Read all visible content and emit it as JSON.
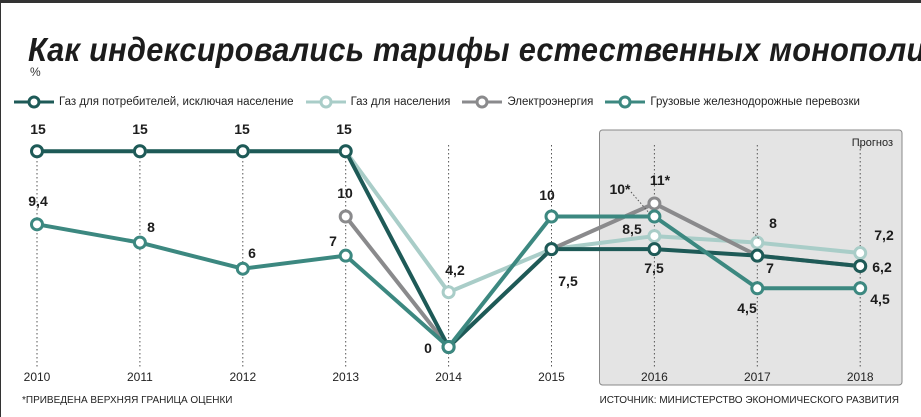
{
  "title": "Как индексировались тарифы естественных монополий",
  "unit": "%",
  "footnote": "*ПРИВЕДЕНА ВЕРХНЯЯ ГРАНИЦА ОЦЕНКИ",
  "source": "ИСТОЧНИК: МИНИСТЕРСТВО ЭКОНОМИЧЕСКОГО РАЗВИТИЯ",
  "colors": {
    "gas_industry": "#1e5a57",
    "gas_population": "#a9cdc8",
    "electricity": "#8a8a8c",
    "rail": "#3c8880",
    "forecast_bg": "#e4e4e4"
  },
  "chart_data": {
    "type": "line",
    "x": [
      "2010",
      "2011",
      "2012",
      "2013",
      "2014",
      "2015",
      "2016",
      "2017",
      "2018"
    ],
    "forecast_label": "Прогноз",
    "forecast_start": "2015",
    "series": [
      {
        "key": "gas_industry",
        "name": "Газ для потребителей, исключая население",
        "values": [
          15,
          15,
          15,
          15,
          0,
          7.5,
          7.5,
          7,
          6.2
        ]
      },
      {
        "key": "gas_population",
        "name": "Газ для населения",
        "values": [
          null,
          15,
          15,
          15,
          4.2,
          7.5,
          8.5,
          8,
          7.2
        ]
      },
      {
        "key": "electricity",
        "name": "Электроэнергия",
        "values": [
          null,
          null,
          null,
          10,
          0,
          7.5,
          11,
          7,
          6.2
        ]
      },
      {
        "key": "rail",
        "name": "Грузовые железнодорожные перевозки",
        "values": [
          9.4,
          8,
          6,
          7,
          0,
          10,
          10,
          4.5,
          4.5
        ]
      }
    ],
    "data_labels": [
      "15",
      "15",
      "15",
      "15",
      "9,4",
      "8",
      "6",
      "10",
      "7",
      "4,2",
      "0",
      "10",
      "7,5",
      "8,5",
      "7,5",
      "10*",
      "11*",
      "8",
      "7",
      "4,5",
      "7,2",
      "6,2",
      "4,5"
    ],
    "ylim": [
      0,
      16
    ]
  }
}
